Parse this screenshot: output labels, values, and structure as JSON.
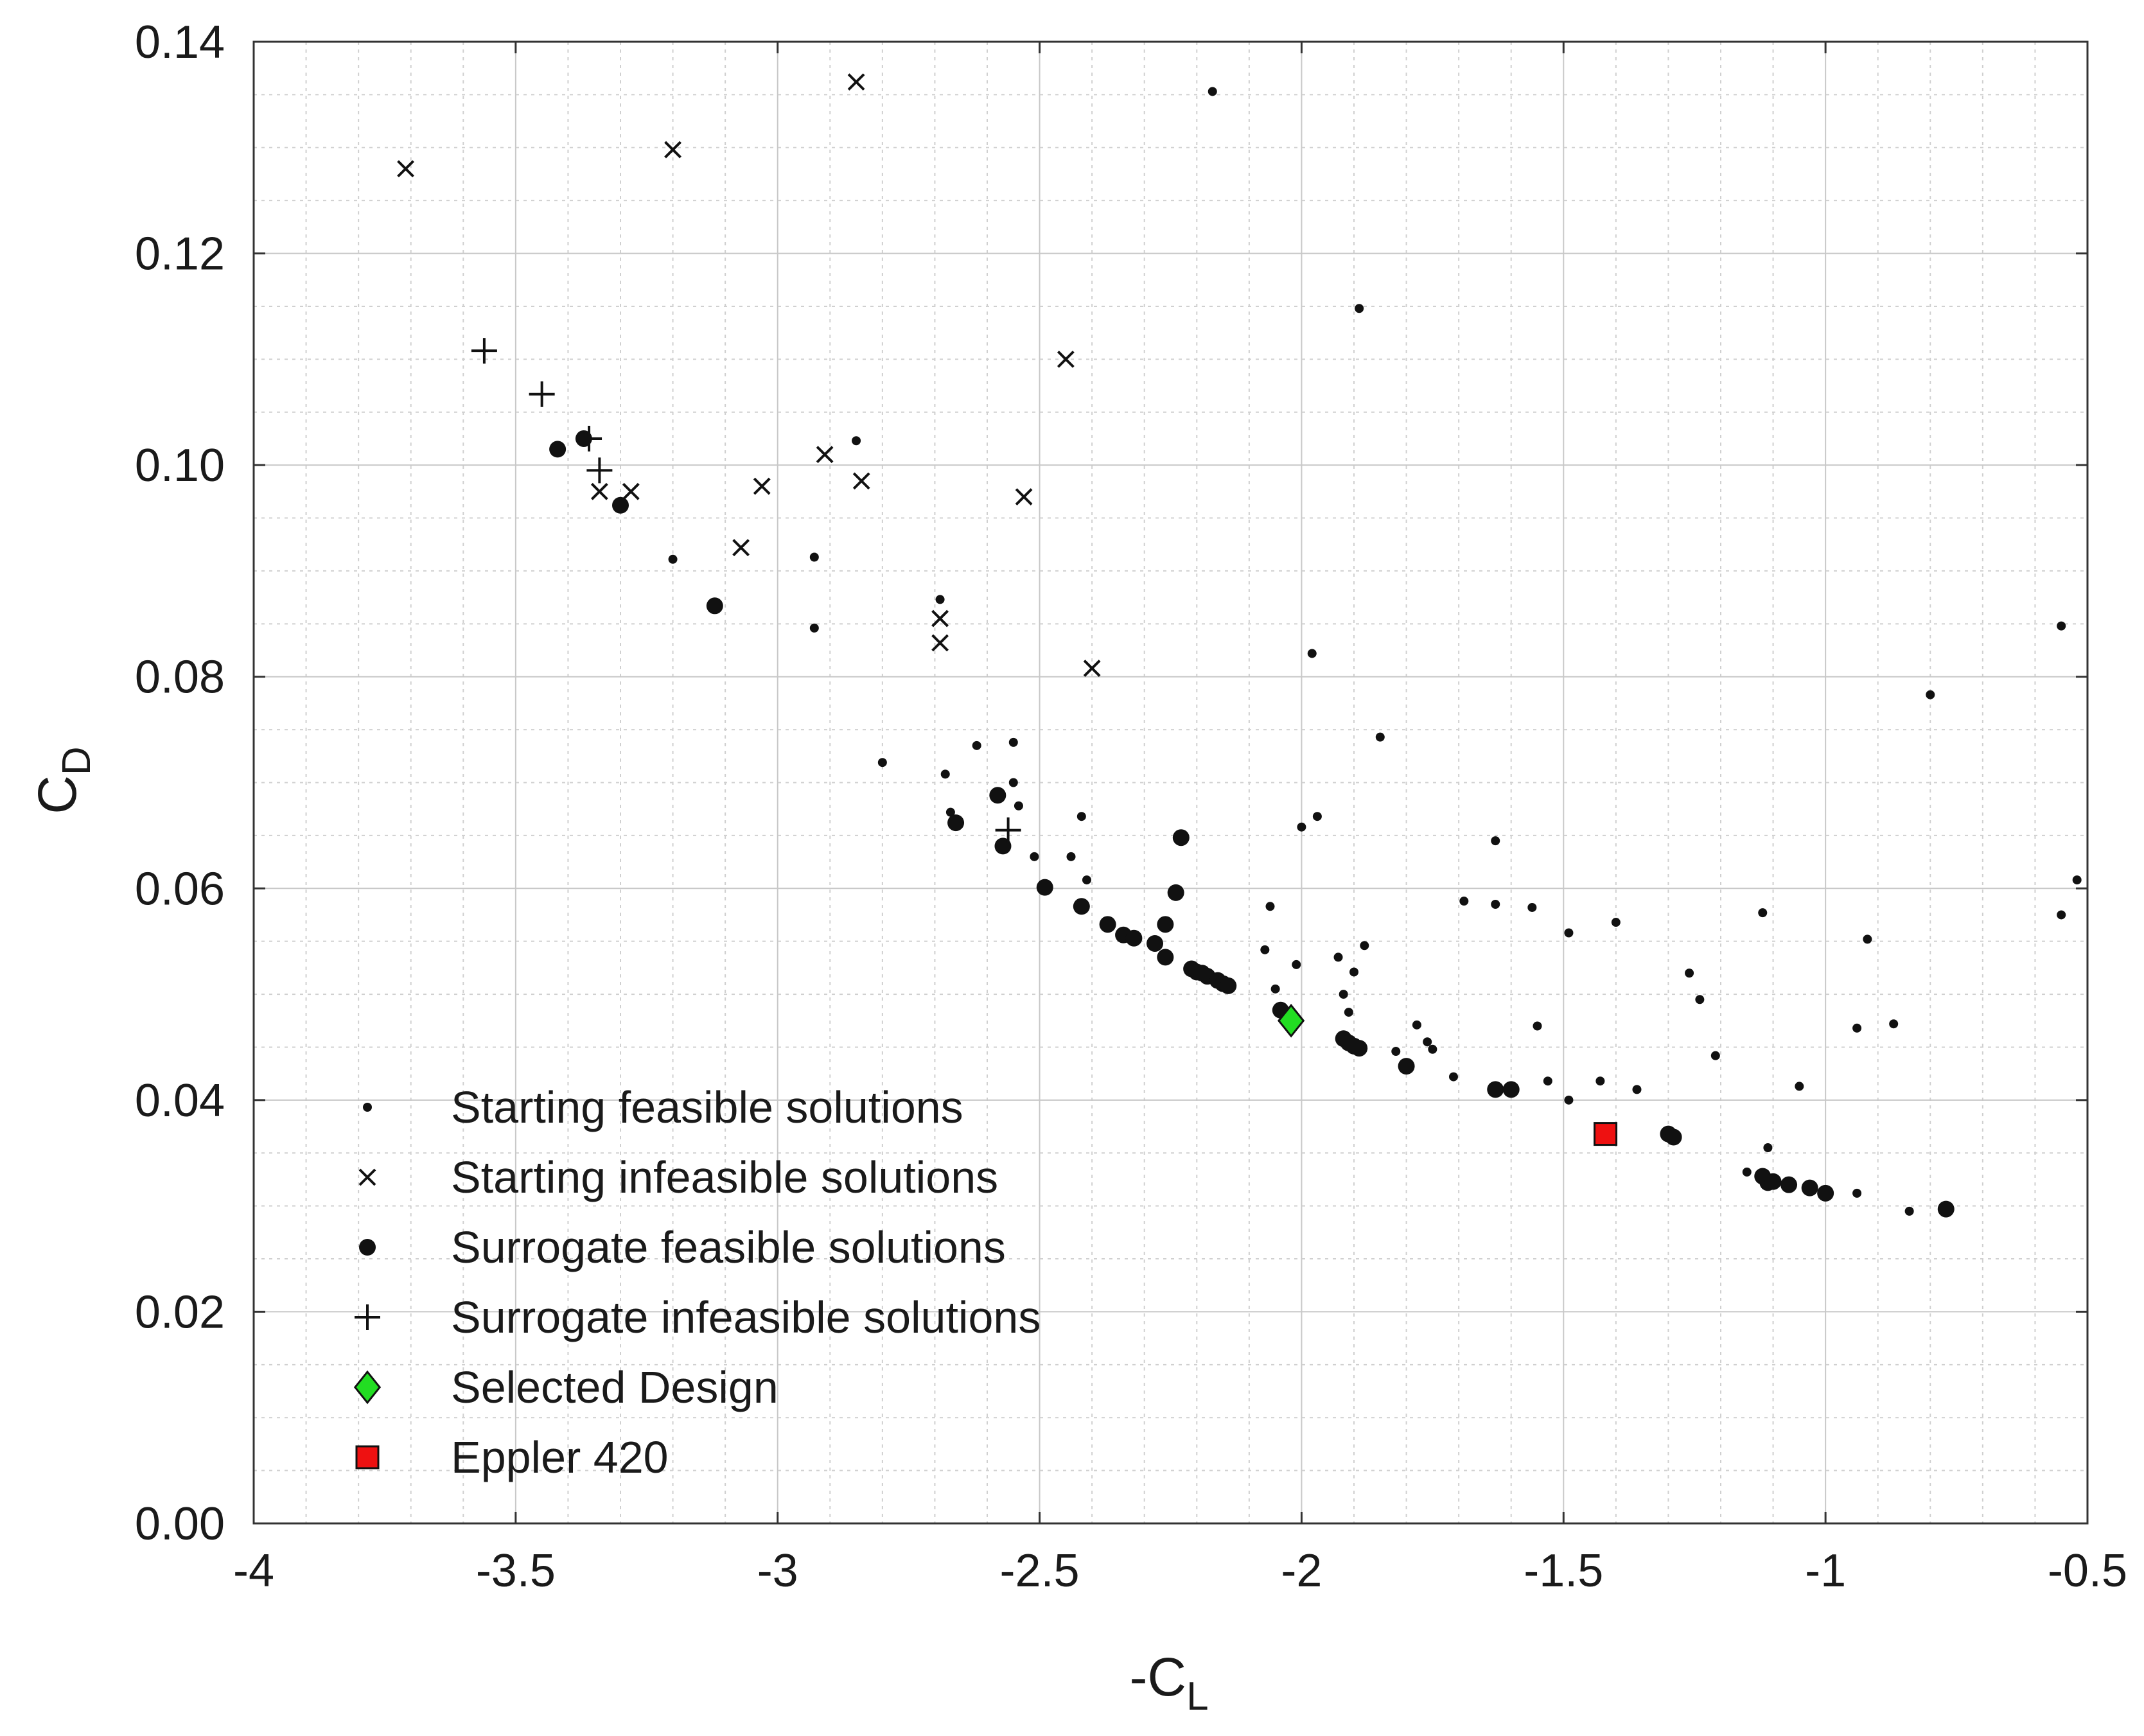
{
  "chart_data": {
    "type": "scatter",
    "title": "",
    "xlabel": "-C",
    "xlabel_sub": "L",
    "ylabel": "C",
    "ylabel_sub": "D",
    "xlim": [
      -4,
      -0.5
    ],
    "ylim": [
      0,
      0.14
    ],
    "x_ticks": [
      -4,
      -3.5,
      -3,
      -2.5,
      -2,
      -1.5,
      -1,
      -0.5
    ],
    "x_tick_labels": [
      "-4",
      "-3.5",
      "-3",
      "-2.5",
      "-2",
      "-1.5",
      "-1",
      "-0.5"
    ],
    "y_ticks": [
      0,
      0.02,
      0.04,
      0.06,
      0.08,
      0.1,
      0.12,
      0.14
    ],
    "y_tick_labels": [
      "0.00",
      "0.02",
      "0.04",
      "0.06",
      "0.08",
      "0.10",
      "0.12",
      "0.14"
    ],
    "grid": true,
    "legend_position": "bottom-left",
    "series": [
      {
        "name": "Starting feasible solutions",
        "marker": "small-dot",
        "color": "#111111",
        "points": [
          [
            -2.17,
            0.1353
          ],
          [
            -1.89,
            0.1148
          ],
          [
            -2.85,
            0.1023
          ],
          [
            -3.2,
            0.0911
          ],
          [
            -2.93,
            0.0913
          ],
          [
            -2.93,
            0.0846
          ],
          [
            -2.69,
            0.0873
          ],
          [
            -1.98,
            0.0822
          ],
          [
            -0.55,
            0.0848
          ],
          [
            -0.8,
            0.0783
          ],
          [
            -1.85,
            0.0743
          ],
          [
            -2.8,
            0.0719
          ],
          [
            -2.62,
            0.0735
          ],
          [
            -2.55,
            0.0738
          ],
          [
            -2.68,
            0.0708
          ],
          [
            -2.55,
            0.07
          ],
          [
            -2.54,
            0.0678
          ],
          [
            -2.67,
            0.0672
          ],
          [
            -2.42,
            0.0668
          ],
          [
            -1.97,
            0.0668
          ],
          [
            -2.0,
            0.0658
          ],
          [
            -2.44,
            0.063
          ],
          [
            -2.51,
            0.063
          ],
          [
            -1.63,
            0.0645
          ],
          [
            -0.52,
            0.0608
          ],
          [
            -2.41,
            0.0608
          ],
          [
            -1.69,
            0.0588
          ],
          [
            -1.63,
            0.0585
          ],
          [
            -1.56,
            0.0582
          ],
          [
            -1.12,
            0.0577
          ],
          [
            -2.06,
            0.0583
          ],
          [
            -1.4,
            0.0568
          ],
          [
            -1.49,
            0.0558
          ],
          [
            -0.55,
            0.0575
          ],
          [
            -0.92,
            0.0552
          ],
          [
            -1.88,
            0.0546
          ],
          [
            -2.07,
            0.0542
          ],
          [
            -1.93,
            0.0535
          ],
          [
            -2.01,
            0.0528
          ],
          [
            -1.9,
            0.0521
          ],
          [
            -1.26,
            0.052
          ],
          [
            -1.92,
            0.05
          ],
          [
            -2.05,
            0.0505
          ],
          [
            -1.24,
            0.0495
          ],
          [
            -1.91,
            0.0483
          ],
          [
            -1.78,
            0.0471
          ],
          [
            -1.55,
            0.047
          ],
          [
            -0.94,
            0.0468
          ],
          [
            -0.87,
            0.0472
          ],
          [
            -1.76,
            0.0455
          ],
          [
            -1.75,
            0.0448
          ],
          [
            -1.82,
            0.0446
          ],
          [
            -1.21,
            0.0442
          ],
          [
            -1.71,
            0.0422
          ],
          [
            -1.53,
            0.0418
          ],
          [
            -1.43,
            0.0418
          ],
          [
            -1.36,
            0.041
          ],
          [
            -1.05,
            0.0413
          ],
          [
            -1.49,
            0.04
          ],
          [
            -1.11,
            0.0355
          ],
          [
            -1.15,
            0.0332
          ],
          [
            -0.94,
            0.0312
          ],
          [
            -0.84,
            0.0295
          ]
        ]
      },
      {
        "name": "Starting infeasible solutions",
        "marker": "x",
        "color": "#111111",
        "points": [
          [
            -3.71,
            0.128
          ],
          [
            -3.2,
            0.1298
          ],
          [
            -2.85,
            0.1362
          ],
          [
            -2.45,
            0.11
          ],
          [
            -2.91,
            0.101
          ],
          [
            -3.34,
            0.0975
          ],
          [
            -3.28,
            0.0975
          ],
          [
            -3.03,
            0.098
          ],
          [
            -2.84,
            0.0985
          ],
          [
            -2.53,
            0.097
          ],
          [
            -3.07,
            0.0922
          ],
          [
            -2.69,
            0.0855
          ],
          [
            -2.69,
            0.0832
          ],
          [
            -2.4,
            0.0808
          ]
        ]
      },
      {
        "name": "Surrogate feasible solutions",
        "marker": "dot",
        "color": "#111111",
        "points": [
          [
            -3.42,
            0.1015
          ],
          [
            -3.37,
            0.1025
          ],
          [
            -3.3,
            0.0962
          ],
          [
            -3.12,
            0.0867
          ],
          [
            -2.58,
            0.0688
          ],
          [
            -2.66,
            0.0662
          ],
          [
            -2.57,
            0.064
          ],
          [
            -2.23,
            0.0648
          ],
          [
            -2.49,
            0.0601
          ],
          [
            -2.24,
            0.0596
          ],
          [
            -2.42,
            0.0583
          ],
          [
            -2.37,
            0.0566
          ],
          [
            -2.26,
            0.0566
          ],
          [
            -2.34,
            0.0556
          ],
          [
            -2.32,
            0.0553
          ],
          [
            -2.28,
            0.0548
          ],
          [
            -2.26,
            0.0535
          ],
          [
            -2.21,
            0.0524
          ],
          [
            -2.2,
            0.0521
          ],
          [
            -2.19,
            0.052
          ],
          [
            -2.18,
            0.0517
          ],
          [
            -2.16,
            0.0513
          ],
          [
            -2.15,
            0.051
          ],
          [
            -2.14,
            0.0508
          ],
          [
            -2.04,
            0.0485
          ],
          [
            -1.92,
            0.0458
          ],
          [
            -1.91,
            0.0454
          ],
          [
            -1.9,
            0.0451
          ],
          [
            -1.89,
            0.0449
          ],
          [
            -1.8,
            0.0432
          ],
          [
            -1.63,
            0.041
          ],
          [
            -1.6,
            0.041
          ],
          [
            -1.3,
            0.0368
          ],
          [
            -1.29,
            0.0365
          ],
          [
            -1.12,
            0.0328
          ],
          [
            -1.11,
            0.0322
          ],
          [
            -1.1,
            0.0323
          ],
          [
            -1.07,
            0.032
          ],
          [
            -1.03,
            0.0317
          ],
          [
            -1.0,
            0.0312
          ],
          [
            -0.77,
            0.0297
          ]
        ]
      },
      {
        "name": "Surrogate infeasible solutions",
        "marker": "plus",
        "color": "#111111",
        "points": [
          [
            -3.56,
            0.1108
          ],
          [
            -3.45,
            0.1067
          ],
          [
            -3.36,
            0.1025
          ],
          [
            -3.34,
            0.0995
          ],
          [
            -2.56,
            0.0655
          ]
        ]
      },
      {
        "name": "Selected Design",
        "marker": "diamond",
        "color": "#22dd22",
        "points": [
          [
            -2.02,
            0.0475
          ]
        ]
      },
      {
        "name": "Eppler 420",
        "marker": "square",
        "color": "#ee1111",
        "points": [
          [
            -1.42,
            0.0368
          ]
        ]
      }
    ]
  }
}
